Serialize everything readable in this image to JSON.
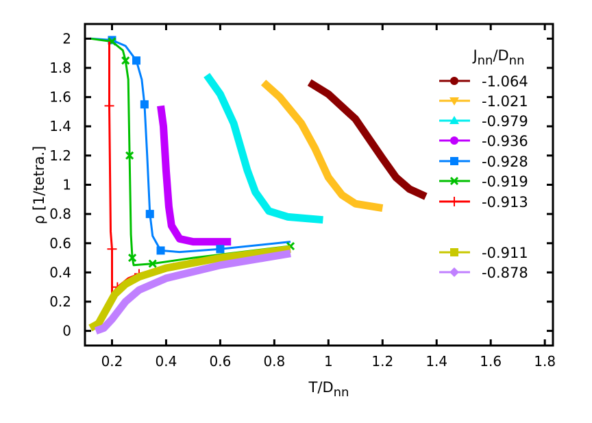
{
  "chart_data": {
    "type": "line",
    "xlabel": "T/D",
    "xlabel_sub": "nn",
    "ylabel": "ρ [1/tetra.]",
    "xlim": [
      0.1,
      1.83
    ],
    "ylim": [
      -0.1,
      2.1
    ],
    "xticks": [
      "0.2",
      "0.4",
      "0.6",
      "0.8",
      "1",
      "1.2",
      "1.4",
      "1.6",
      "1.8"
    ],
    "xtick_values": [
      0.2,
      0.4,
      0.6,
      0.8,
      1,
      1.2,
      1.4,
      1.6,
      1.8
    ],
    "yticks": [
      "0",
      "0.2",
      "0.4",
      "0.6",
      "0.8",
      "1",
      "1.2",
      "1.4",
      "1.6",
      "1.8",
      "2"
    ],
    "ytick_values": [
      0,
      0.2,
      0.4,
      0.6,
      0.8,
      1,
      1.2,
      1.4,
      1.6,
      1.8,
      2
    ],
    "legend": {
      "title_main": "J",
      "title_sub1": "nn",
      "title_mid": "/D",
      "title_sub2": "nn",
      "placement": "right"
    },
    "series": [
      {
        "name": "-1.064",
        "color": "#8b0000",
        "marker": "circle",
        "dense": true,
        "points": [
          [
            0.93,
            1.7
          ],
          [
            1.0,
            1.62
          ],
          [
            1.1,
            1.45
          ],
          [
            1.2,
            1.18
          ],
          [
            1.25,
            1.05
          ],
          [
            1.3,
            0.97
          ],
          [
            1.36,
            0.92
          ]
        ]
      },
      {
        "name": "-1.021",
        "color": "#ffc020",
        "marker": "triangle-down",
        "dense": true,
        "points": [
          [
            0.76,
            1.7
          ],
          [
            0.82,
            1.6
          ],
          [
            0.9,
            1.42
          ],
          [
            0.95,
            1.25
          ],
          [
            1.0,
            1.05
          ],
          [
            1.05,
            0.93
          ],
          [
            1.1,
            0.87
          ],
          [
            1.2,
            0.84
          ]
        ]
      },
      {
        "name": "-0.979",
        "color": "#00eeee",
        "marker": "triangle-up",
        "dense": true,
        "points": [
          [
            0.55,
            1.75
          ],
          [
            0.6,
            1.62
          ],
          [
            0.65,
            1.42
          ],
          [
            0.7,
            1.1
          ],
          [
            0.73,
            0.95
          ],
          [
            0.78,
            0.82
          ],
          [
            0.85,
            0.78
          ],
          [
            0.98,
            0.76
          ]
        ]
      },
      {
        "name": "-0.936",
        "color": "#c000ff",
        "marker": "circle",
        "dense": true,
        "points": [
          [
            0.38,
            1.54
          ],
          [
            0.39,
            1.4
          ],
          [
            0.4,
            1.1
          ],
          [
            0.41,
            0.85
          ],
          [
            0.42,
            0.72
          ],
          [
            0.45,
            0.63
          ],
          [
            0.5,
            0.61
          ],
          [
            0.64,
            0.61
          ]
        ]
      },
      {
        "name": "-0.928",
        "color": "#0080ff",
        "marker": "square",
        "dense": false,
        "points": [
          [
            0.12,
            2.0
          ],
          [
            0.2,
            1.99
          ],
          [
            0.25,
            1.95
          ],
          [
            0.29,
            1.85
          ],
          [
            0.31,
            1.72
          ],
          [
            0.32,
            1.55
          ],
          [
            0.33,
            1.2
          ],
          [
            0.34,
            0.8
          ],
          [
            0.35,
            0.65
          ],
          [
            0.38,
            0.55
          ],
          [
            0.45,
            0.54
          ],
          [
            0.6,
            0.56
          ],
          [
            0.86,
            0.61
          ]
        ]
      },
      {
        "name": "-0.919",
        "color": "#00c000",
        "marker": "x",
        "dense": false,
        "points": [
          [
            0.12,
            2.0
          ],
          [
            0.2,
            1.98
          ],
          [
            0.24,
            1.92
          ],
          [
            0.25,
            1.85
          ],
          [
            0.26,
            1.72
          ],
          [
            0.265,
            1.2
          ],
          [
            0.27,
            0.66
          ],
          [
            0.275,
            0.5
          ],
          [
            0.28,
            0.45
          ],
          [
            0.35,
            0.46
          ],
          [
            0.5,
            0.5
          ],
          [
            0.86,
            0.58
          ]
        ]
      },
      {
        "name": "-0.913",
        "color": "#ff0000",
        "marker": "plus",
        "dense": false,
        "points": [
          [
            0.19,
            1.98
          ],
          [
            0.19,
            1.54
          ],
          [
            0.195,
            0.68
          ],
          [
            0.2,
            0.56
          ],
          [
            0.2,
            0.25
          ],
          [
            0.22,
            0.3
          ],
          [
            0.26,
            0.36
          ],
          [
            0.3,
            0.39
          ],
          [
            0.43,
            0.46
          ]
        ]
      },
      {
        "name": "-0.911",
        "color": "#c8c800",
        "marker": "square",
        "dense": true,
        "points": [
          [
            0.12,
            0.02
          ],
          [
            0.15,
            0.05
          ],
          [
            0.18,
            0.15
          ],
          [
            0.21,
            0.25
          ],
          [
            0.25,
            0.32
          ],
          [
            0.3,
            0.37
          ],
          [
            0.4,
            0.43
          ],
          [
            0.6,
            0.5
          ],
          [
            0.86,
            0.56
          ]
        ]
      },
      {
        "name": "-0.878",
        "color": "#c080ff",
        "marker": "diamond",
        "dense": true,
        "points": [
          [
            0.14,
            0.0
          ],
          [
            0.17,
            0.02
          ],
          [
            0.2,
            0.08
          ],
          [
            0.25,
            0.2
          ],
          [
            0.3,
            0.28
          ],
          [
            0.4,
            0.36
          ],
          [
            0.6,
            0.45
          ],
          [
            0.86,
            0.53
          ]
        ]
      }
    ]
  }
}
